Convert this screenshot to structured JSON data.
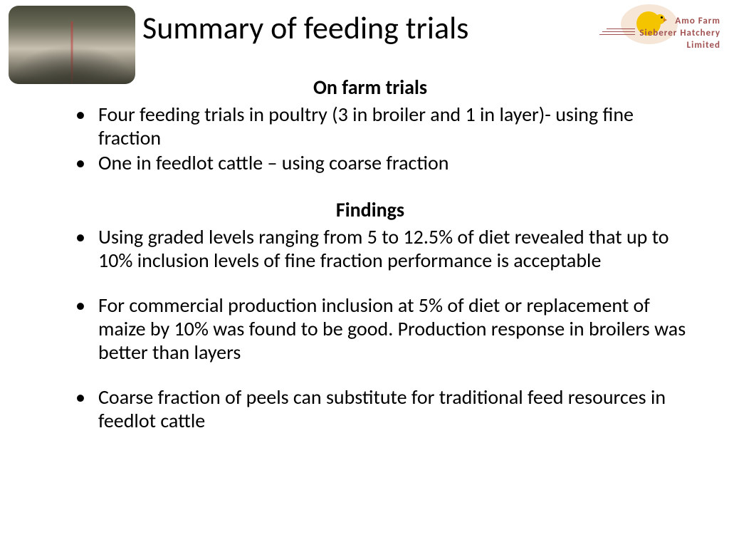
{
  "title": "Summary of feeding trials",
  "logo": {
    "line1": "Amo  Farm",
    "line2": "Sieberer  Hatchery",
    "line3": "Limited"
  },
  "section1": {
    "heading": "On farm trials",
    "bullets": [
      "Four feeding trials in poultry (3  in broiler and 1 in layer)- using fine  fraction",
      "One in feedlot cattle – using coarse fraction"
    ]
  },
  "section2": {
    "heading": "Findings",
    "bullets": [
      "Using graded levels ranging from 5 to 12.5% of diet revealed that up to 10% inclusion levels of fine fraction performance is acceptable",
      "For commercial production inclusion at 5% of diet or replacement of maize by 10%  was found to be good. Production response in broilers was better than layers",
      "Coarse fraction of peels can substitute for traditional feed resources  in feedlot cattle"
    ]
  }
}
